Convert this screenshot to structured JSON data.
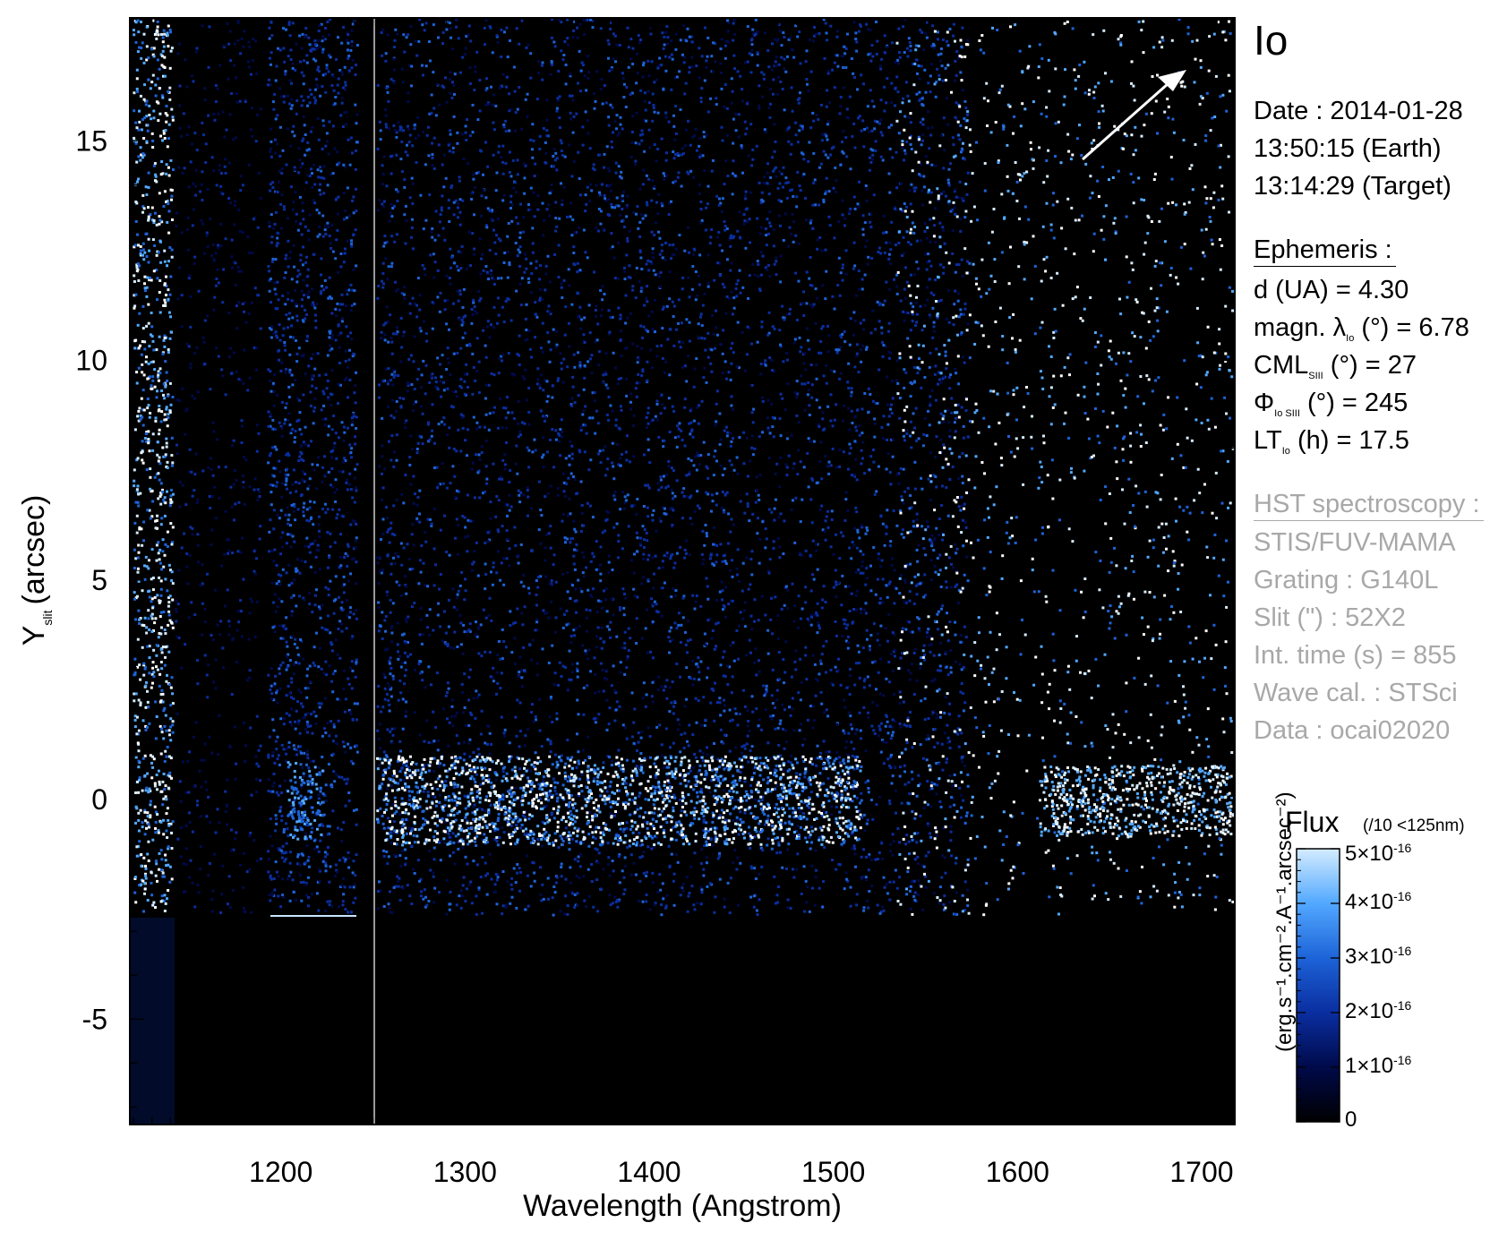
{
  "chart_data": {
    "type": "heatmap",
    "title": "Io",
    "xlabel": "Wavelength (Angstrom)",
    "ylabel": {
      "main": "Y",
      "subscript": "slit",
      "unit": "(arcsec)"
    },
    "xlim": [
      1118,
      1718
    ],
    "ylim": [
      -7.4,
      17.8
    ],
    "xticks": [
      1200,
      1300,
      1400,
      1500,
      1600,
      1700
    ],
    "xtick_labels": [
      "1200",
      "1300",
      "1400",
      "1500",
      "1600",
      "1700"
    ],
    "yticks": [
      -5,
      0,
      5,
      10,
      15
    ],
    "ytick_labels": [
      "-5",
      "0",
      "5",
      "10",
      "15"
    ],
    "emission_band_y": [
      -0.5,
      0.5
    ],
    "slit_edge_y": -2.6,
    "colorbar": {
      "label_top": "Flux",
      "note": "(/10 <125nm)",
      "unit": "(erg.s⁻¹.cm⁻².A⁻¹.arcsec⁻²)",
      "range": [
        0,
        5e-16
      ],
      "ticks": [
        {
          "value": 5e-16,
          "mantissa": "5×10",
          "exponent": "-16"
        },
        {
          "value": 4e-16,
          "mantissa": "4×10",
          "exponent": "-16"
        },
        {
          "value": 3e-16,
          "mantissa": "3×10",
          "exponent": "-16"
        },
        {
          "value": 2e-16,
          "mantissa": "2×10",
          "exponent": "-16"
        },
        {
          "value": 1e-16,
          "mantissa": "1×10",
          "exponent": "-16"
        },
        {
          "value": 0,
          "mantissa": "0",
          "exponent": ""
        }
      ],
      "colors": [
        "#000000",
        "#000a4a",
        "#0a2ea0",
        "#1d63d8",
        "#52a8ff",
        "#d4ecff"
      ]
    }
  },
  "info": {
    "target": "Io",
    "date_line": "Date : 2014-01-28",
    "earth_time": "13:50:15 (Earth)",
    "target_time": "13:14:29 (Target)",
    "ephemeris_header": "Ephemeris :",
    "d_ua": "d (UA)     = 4.30",
    "magn_pre": "magn. λ",
    "magn_sub": "Io",
    "magn_post": " (°)  = 6.78",
    "cml_pre": "CML",
    "cml_sub": "SIII",
    "cml_post": " (°) = 27",
    "phi_pre": "Φ",
    "phi_sub": "Io SIII",
    "phi_post": " (°) = 245",
    "lt_pre": "LT",
    "lt_sub": "Io",
    "lt_post": " (h) = 17.5",
    "hst_header": "HST spectroscopy :",
    "instrument": "STIS/FUV-MAMA",
    "grating": "Grating : G140L",
    "slit": "Slit (\") : 52X2",
    "int_time": "Int. time (s) = 855",
    "wave_cal": "Wave cal. : STSci",
    "data_id": "Data : ocai02020"
  }
}
